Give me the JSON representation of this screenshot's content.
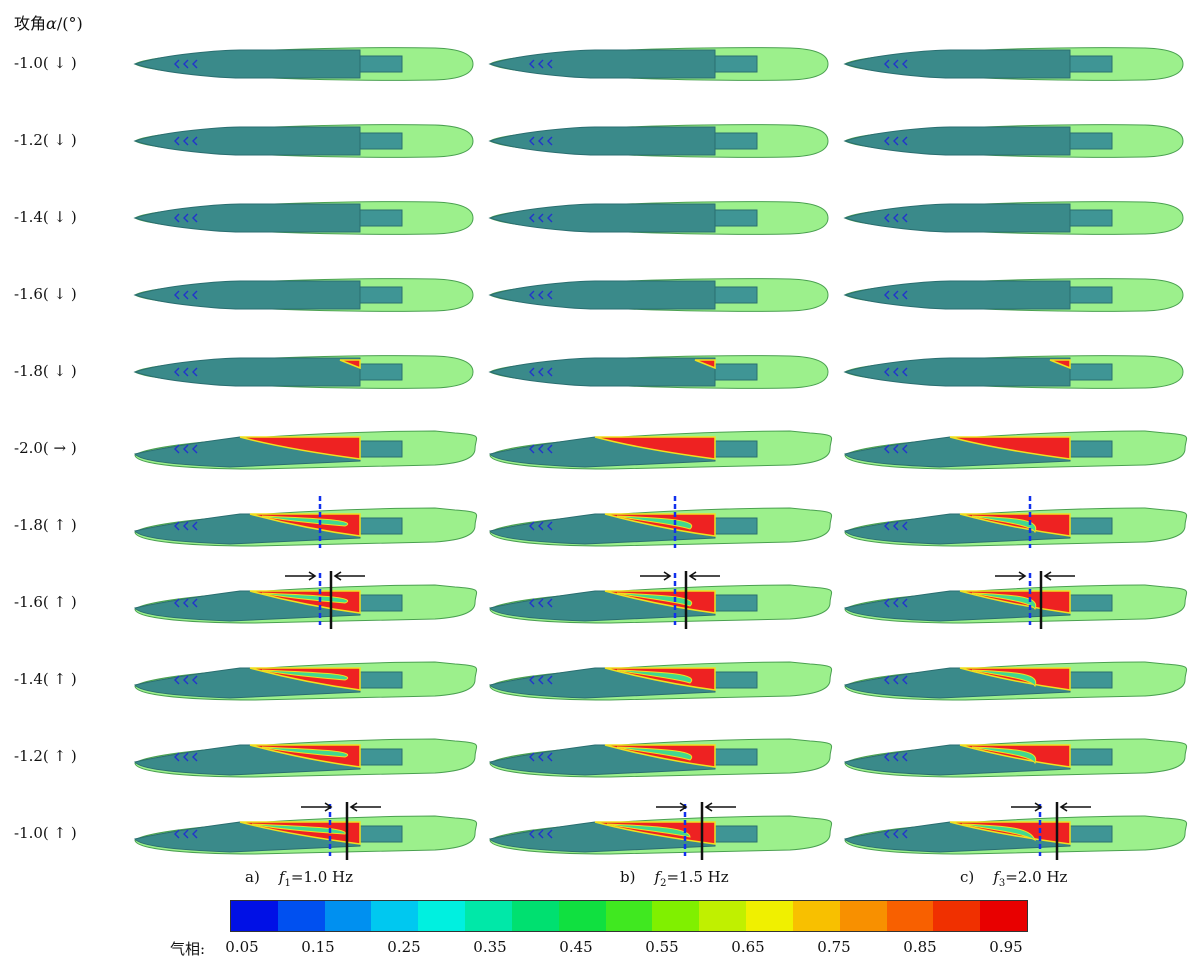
{
  "header": {
    "label": "攻角",
    "symbol": "α",
    "unit": "/(°)"
  },
  "rows": [
    {
      "value": "-1.0",
      "dir": "↓"
    },
    {
      "value": "-1.2",
      "dir": "↓"
    },
    {
      "value": "-1.4",
      "dir": "↓"
    },
    {
      "value": "-1.6",
      "dir": "↓"
    },
    {
      "value": "-1.8",
      "dir": "↓"
    },
    {
      "value": "-2.0",
      "dir": "→"
    },
    {
      "value": "-1.8",
      "dir": "↑"
    },
    {
      "value": "-1.6",
      "dir": "↑"
    },
    {
      "value": "-1.4",
      "dir": "↑"
    },
    {
      "value": "-1.2",
      "dir": "↑"
    },
    {
      "value": "-1.0",
      "dir": "↑"
    }
  ],
  "columns": [
    {
      "prefix": "a)",
      "var": "f",
      "sub": "1",
      "value": "=1.0 Hz"
    },
    {
      "prefix": "b)",
      "var": "f",
      "sub": "2",
      "value": "=1.5 Hz"
    },
    {
      "prefix": "c)",
      "var": "f",
      "sub": "3",
      "value": "=2.0 Hz"
    }
  ],
  "legend": {
    "title": "气相:",
    "ticks": [
      "0.05",
      "0.15",
      "0.25",
      "0.35",
      "0.45",
      "0.55",
      "0.65",
      "0.75",
      "0.85",
      "0.95"
    ],
    "colors": [
      "#0010e6",
      "#0050f0",
      "#0090f0",
      "#00c8f0",
      "#00f0e0",
      "#00e8a8",
      "#00e070",
      "#10e040",
      "#40e820",
      "#80f000",
      "#c0f000",
      "#f0f000",
      "#f8c000",
      "#f89000",
      "#f86000",
      "#f03000",
      "#e80000"
    ]
  },
  "colors": {
    "outer": "#9cf08c",
    "outer_edge": "#4aa050",
    "body": "#3a8a8a",
    "body_dark": "#2a6e70",
    "tail": "#3f9595",
    "cavity": "#ee2222",
    "cavity_edge": "#f0e020",
    "inner_cav": "#40d890",
    "marker": "#2233cc",
    "line": "#111111"
  }
}
